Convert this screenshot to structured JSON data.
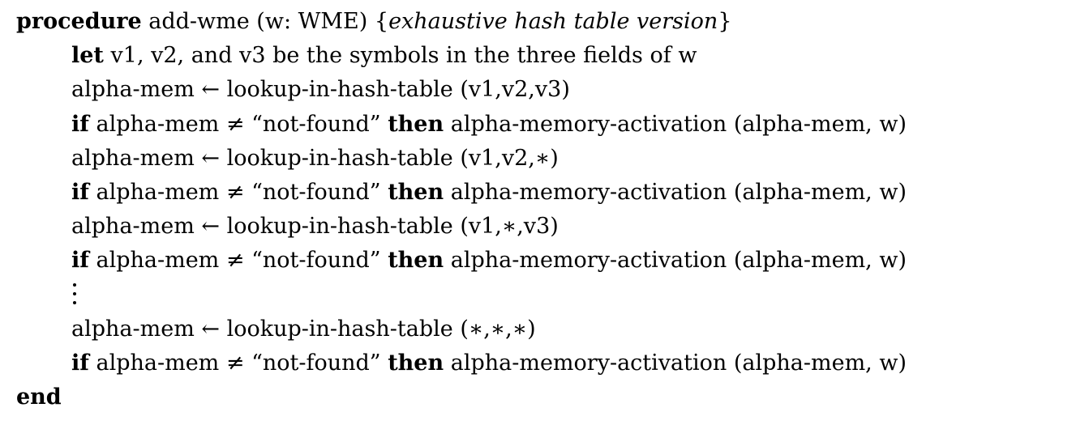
{
  "algorithm": {
    "header": {
      "keyword": "procedure",
      "signature": "add-wme (w: WME)",
      "comment_open": "{",
      "comment": "exhaustive hash table version",
      "comment_close": "}"
    },
    "let_line": {
      "keyword": "let",
      "text": "v1, v2, and v3 be the symbols in the three fields of w"
    },
    "lookups": [
      {
        "assign": "alpha-mem ← lookup-in-hash-table (v1,v2,v3)",
        "if_keyword": "if",
        "condition": "alpha-mem ≠ “not-found”",
        "then_keyword": "then",
        "action": "alpha-memory-activation (alpha-mem, w)"
      },
      {
        "assign": "alpha-mem ← lookup-in-hash-table (v1,v2,∗)",
        "if_keyword": "if",
        "condition": "alpha-mem ≠ “not-found”",
        "then_keyword": "then",
        "action": "alpha-memory-activation (alpha-mem, w)"
      },
      {
        "assign": "alpha-mem ← lookup-in-hash-table (v1,∗,v3)",
        "if_keyword": "if",
        "condition": "alpha-mem ≠ “not-found”",
        "then_keyword": "then",
        "action": "alpha-memory-activation (alpha-mem, w)"
      },
      {
        "assign": "alpha-mem ← lookup-in-hash-table (∗,∗,∗)",
        "if_keyword": "if",
        "condition": "alpha-mem ≠ “not-found”",
        "then_keyword": "then",
        "action": "alpha-memory-activation (alpha-mem, w)"
      }
    ],
    "end_keyword": "end"
  }
}
